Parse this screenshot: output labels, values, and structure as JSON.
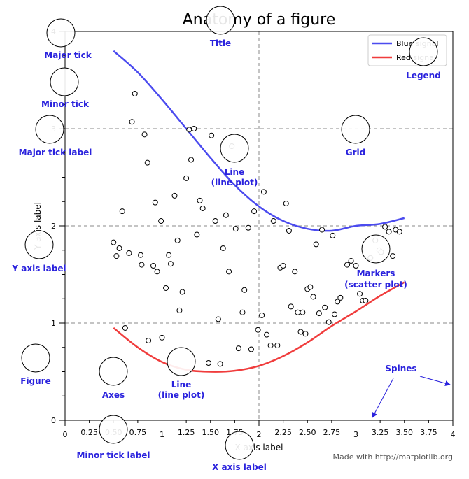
{
  "chart_data": {
    "type": "line",
    "title": "Anatomy of a figure",
    "xlabel": "X axis label",
    "ylabel": "Y axis label",
    "xlim": [
      0,
      4
    ],
    "ylim": [
      0,
      4
    ],
    "grid": true,
    "legend_position": "top-right",
    "x_major_ticks": [
      "0",
      "1",
      "2",
      "3",
      "4"
    ],
    "x_minor_ticks": [
      "0.25",
      "0.50",
      "0.75",
      "1.25",
      "1.50",
      "1.75",
      "2.25",
      "2.50",
      "2.75",
      "3.25",
      "3.50",
      "3.75"
    ],
    "y_major_ticks": [
      "0",
      "1",
      "2",
      "3",
      "4"
    ],
    "series": [
      {
        "name": "Blue signal",
        "color": "#4b4bef",
        "x": [
          0.5,
          0.75,
          1.0,
          1.25,
          1.5,
          1.75,
          2.0,
          2.25,
          2.5,
          2.75,
          3.0,
          3.25,
          3.5
        ],
        "y": [
          3.8,
          3.58,
          3.3,
          3.0,
          2.7,
          2.42,
          2.2,
          2.05,
          1.97,
          1.95,
          2.0,
          2.02,
          2.08
        ]
      },
      {
        "name": "Red signal",
        "color": "#f03c3c",
        "x": [
          0.5,
          0.75,
          1.0,
          1.25,
          1.5,
          1.75,
          2.0,
          2.25,
          2.5,
          2.75,
          3.0,
          3.25,
          3.5
        ],
        "y": [
          0.95,
          0.75,
          0.6,
          0.52,
          0.5,
          0.51,
          0.56,
          0.66,
          0.8,
          0.97,
          1.12,
          1.28,
          1.42
        ]
      },
      {
        "name": "",
        "marker": "circle",
        "points": [
          [
            0.5,
            1.83
          ],
          [
            0.53,
            1.69
          ],
          [
            0.56,
            1.77
          ],
          [
            0.59,
            2.15
          ],
          [
            0.62,
            0.95
          ],
          [
            0.66,
            1.72
          ],
          [
            0.69,
            3.07
          ],
          [
            0.72,
            3.36
          ],
          [
            0.78,
            1.7
          ],
          [
            0.79,
            1.6
          ],
          [
            0.82,
            2.94
          ],
          [
            0.85,
            2.65
          ],
          [
            0.86,
            0.82
          ],
          [
            0.91,
            1.59
          ],
          [
            0.93,
            2.24
          ],
          [
            0.95,
            1.53
          ],
          [
            0.99,
            2.05
          ],
          [
            1.0,
            0.85
          ],
          [
            1.04,
            1.36
          ],
          [
            1.07,
            1.7
          ],
          [
            1.09,
            1.61
          ],
          [
            1.13,
            2.31
          ],
          [
            1.16,
            1.85
          ],
          [
            1.18,
            1.13
          ],
          [
            1.21,
            1.32
          ],
          [
            1.25,
            2.49
          ],
          [
            1.28,
            2.99
          ],
          [
            1.3,
            2.68
          ],
          [
            1.33,
            3.0
          ],
          [
            1.36,
            1.91
          ],
          [
            1.39,
            2.26
          ],
          [
            1.42,
            2.18
          ],
          [
            1.48,
            0.59
          ],
          [
            1.51,
            2.93
          ],
          [
            1.55,
            2.05
          ],
          [
            1.58,
            1.04
          ],
          [
            1.6,
            0.58
          ],
          [
            1.63,
            1.77
          ],
          [
            1.66,
            2.11
          ],
          [
            1.69,
            1.53
          ],
          [
            1.72,
            2.82
          ],
          [
            1.76,
            1.97
          ],
          [
            1.79,
            0.74
          ],
          [
            1.83,
            1.11
          ],
          [
            1.85,
            1.34
          ],
          [
            1.89,
            1.98
          ],
          [
            1.92,
            0.73
          ],
          [
            1.95,
            2.15
          ],
          [
            1.99,
            0.93
          ],
          [
            2.03,
            1.08
          ],
          [
            2.05,
            2.35
          ],
          [
            2.08,
            0.88
          ],
          [
            2.12,
            0.77
          ],
          [
            2.15,
            2.05
          ],
          [
            2.19,
            0.77
          ],
          [
            2.22,
            1.57
          ],
          [
            2.25,
            1.59
          ],
          [
            2.28,
            2.23
          ],
          [
            2.31,
            1.95
          ],
          [
            2.33,
            1.17
          ],
          [
            2.37,
            1.53
          ],
          [
            2.4,
            1.11
          ],
          [
            2.43,
            0.91
          ],
          [
            2.45,
            1.11
          ],
          [
            2.48,
            0.89
          ],
          [
            2.5,
            1.35
          ],
          [
            2.53,
            1.37
          ],
          [
            2.56,
            1.27
          ],
          [
            2.59,
            1.81
          ],
          [
            2.62,
            1.1
          ],
          [
            2.65,
            1.96
          ],
          [
            2.68,
            1.16
          ],
          [
            2.72,
            1.01
          ],
          [
            2.76,
            1.9
          ],
          [
            2.78,
            1.09
          ],
          [
            2.81,
            1.22
          ],
          [
            2.84,
            1.26
          ],
          [
            2.91,
            1.6
          ],
          [
            2.95,
            1.64
          ],
          [
            3.0,
            1.59
          ],
          [
            3.04,
            1.3
          ],
          [
            3.07,
            1.23
          ],
          [
            3.1,
            1.23
          ],
          [
            3.15,
            1.67
          ],
          [
            3.2,
            1.85
          ],
          [
            3.24,
            1.75
          ],
          [
            3.26,
            1.73
          ],
          [
            3.3,
            1.99
          ],
          [
            3.34,
            1.94
          ],
          [
            3.38,
            1.69
          ],
          [
            3.41,
            1.96
          ],
          [
            3.45,
            1.94
          ]
        ]
      }
    ]
  },
  "annotations": {
    "major_tick": "Major tick",
    "minor_tick": "Minor tick",
    "major_tick_label": "Major tick label",
    "y_axis_label": "Y axis label",
    "figure": "Figure",
    "axes": "Axes",
    "line_a_1": "Line",
    "line_a_2": "(line plot)",
    "line_b_1": "Line",
    "line_b_2": "(line plot)",
    "title": "Title",
    "legend": "Legend",
    "grid": "Grid",
    "markers_1": "Markers",
    "markers_2": "(scatter plot)",
    "spines": "Spines",
    "minor_tick_label": "Minor tick label",
    "x_axis_label": "X axis label"
  },
  "footer": "Made with http://matplotlib.org"
}
